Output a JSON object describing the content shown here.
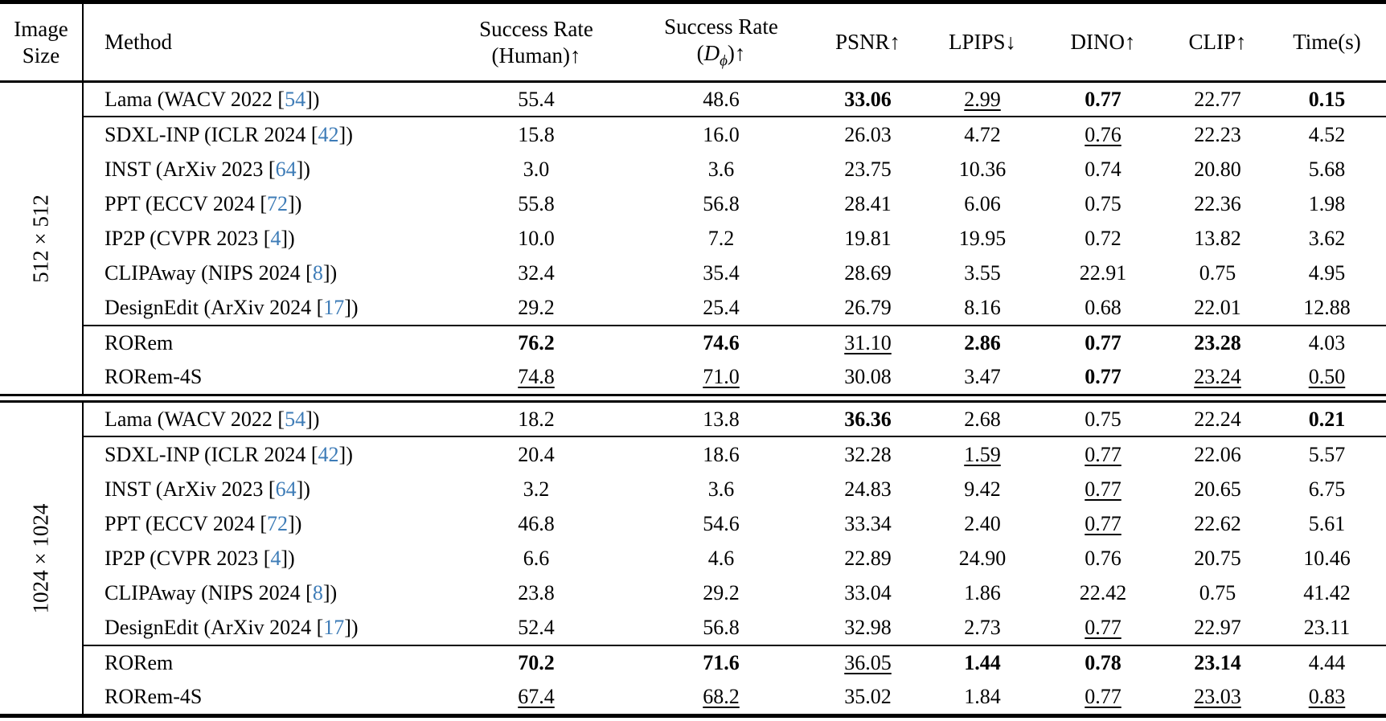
{
  "colors": {
    "citation_link": "#3e7cb7",
    "text": "#000000",
    "background": "#ffffff"
  },
  "table": {
    "headers": {
      "image_size_line1": "Image",
      "image_size_line2": "Size",
      "method": "Method",
      "sr_human_line1": "Success Rate",
      "sr_human_line2": "(Human)↑",
      "sr_d_line1": "Success Rate",
      "sr_d_open": "(",
      "sr_d_symbol": "D",
      "sr_d_sub": "ϕ",
      "sr_d_close": ")↑",
      "psnr": "PSNR↑",
      "lpips": "LPIPS↓",
      "dino": "DINO↑",
      "clip": "CLIP↑",
      "time": "Time(s)"
    },
    "groups": [
      {
        "size_label": "512 × 512",
        "rows": [
          {
            "rule_below": true,
            "method": {
              "prefix": "Lama (WACV 2022 [",
              "cite": "54",
              "suffix": "])"
            },
            "cells": [
              {
                "v": "55.4",
                "s": "p"
              },
              {
                "v": "48.6",
                "s": "p"
              },
              {
                "v": "33.06",
                "s": "b"
              },
              {
                "v": "2.99",
                "s": "u"
              },
              {
                "v": "0.77",
                "s": "b"
              },
              {
                "v": "22.77",
                "s": "p"
              },
              {
                "v": "0.15",
                "s": "b"
              }
            ]
          },
          {
            "method": {
              "prefix": "SDXL-INP (ICLR 2024 [",
              "cite": "42",
              "suffix": "])"
            },
            "cells": [
              {
                "v": "15.8",
                "s": "p"
              },
              {
                "v": "16.0",
                "s": "p"
              },
              {
                "v": "26.03",
                "s": "p"
              },
              {
                "v": "4.72",
                "s": "p"
              },
              {
                "v": "0.76",
                "s": "u"
              },
              {
                "v": "22.23",
                "s": "p"
              },
              {
                "v": "4.52",
                "s": "p"
              }
            ]
          },
          {
            "method": {
              "prefix": "INST (ArXiv 2023 [",
              "cite": "64",
              "suffix": "])"
            },
            "cells": [
              {
                "v": "3.0",
                "s": "p"
              },
              {
                "v": "3.6",
                "s": "p"
              },
              {
                "v": "23.75",
                "s": "p"
              },
              {
                "v": "10.36",
                "s": "p"
              },
              {
                "v": "0.74",
                "s": "p"
              },
              {
                "v": "20.80",
                "s": "p"
              },
              {
                "v": "5.68",
                "s": "p"
              }
            ]
          },
          {
            "method": {
              "prefix": "PPT (ECCV 2024 [",
              "cite": "72",
              "suffix": "])"
            },
            "cells": [
              {
                "v": "55.8",
                "s": "p"
              },
              {
                "v": "56.8",
                "s": "p"
              },
              {
                "v": "28.41",
                "s": "p"
              },
              {
                "v": "6.06",
                "s": "p"
              },
              {
                "v": "0.75",
                "s": "p"
              },
              {
                "v": "22.36",
                "s": "p"
              },
              {
                "v": "1.98",
                "s": "p"
              }
            ]
          },
          {
            "method": {
              "prefix": "IP2P (CVPR 2023 [",
              "cite": "4",
              "suffix": "])"
            },
            "cells": [
              {
                "v": "10.0",
                "s": "p"
              },
              {
                "v": "7.2",
                "s": "p"
              },
              {
                "v": "19.81",
                "s": "p"
              },
              {
                "v": "19.95",
                "s": "p"
              },
              {
                "v": "0.72",
                "s": "p"
              },
              {
                "v": "13.82",
                "s": "p"
              },
              {
                "v": "3.62",
                "s": "p"
              }
            ]
          },
          {
            "method": {
              "prefix": "CLIPAway (NIPS 2024 [",
              "cite": "8",
              "suffix": "])"
            },
            "cells": [
              {
                "v": "32.4",
                "s": "p"
              },
              {
                "v": "35.4",
                "s": "p"
              },
              {
                "v": "28.69",
                "s": "p"
              },
              {
                "v": "3.55",
                "s": "p"
              },
              {
                "v": "22.91",
                "s": "p"
              },
              {
                "v": "0.75",
                "s": "p"
              },
              {
                "v": "4.95",
                "s": "p"
              }
            ]
          },
          {
            "method": {
              "prefix": "DesignEdit (ArXiv 2024 [",
              "cite": "17",
              "suffix": "])"
            },
            "cells": [
              {
                "v": "29.2",
                "s": "p"
              },
              {
                "v": "25.4",
                "s": "p"
              },
              {
                "v": "26.79",
                "s": "p"
              },
              {
                "v": "8.16",
                "s": "p"
              },
              {
                "v": "0.68",
                "s": "p"
              },
              {
                "v": "22.01",
                "s": "p"
              },
              {
                "v": "12.88",
                "s": "p"
              }
            ]
          },
          {
            "rule_above": true,
            "method": {
              "prefix": "RORem",
              "cite": "",
              "suffix": ""
            },
            "cells": [
              {
                "v": "76.2",
                "s": "b"
              },
              {
                "v": "74.6",
                "s": "b"
              },
              {
                "v": "31.10",
                "s": "u"
              },
              {
                "v": "2.86",
                "s": "b"
              },
              {
                "v": "0.77",
                "s": "b"
              },
              {
                "v": "23.28",
                "s": "b"
              },
              {
                "v": "4.03",
                "s": "p"
              }
            ]
          },
          {
            "method": {
              "prefix": "RORem-4S",
              "cite": "",
              "suffix": ""
            },
            "cells": [
              {
                "v": "74.8",
                "s": "u"
              },
              {
                "v": "71.0",
                "s": "u"
              },
              {
                "v": "30.08",
                "s": "p"
              },
              {
                "v": "3.47",
                "s": "p"
              },
              {
                "v": "0.77",
                "s": "b"
              },
              {
                "v": "23.24",
                "s": "u"
              },
              {
                "v": "0.50",
                "s": "u"
              }
            ]
          }
        ]
      },
      {
        "size_label": "1024 × 1024",
        "rows": [
          {
            "rule_below": true,
            "method": {
              "prefix": "Lama (WACV 2022 [",
              "cite": "54",
              "suffix": "])"
            },
            "cells": [
              {
                "v": "18.2",
                "s": "p"
              },
              {
                "v": "13.8",
                "s": "p"
              },
              {
                "v": "36.36",
                "s": "b"
              },
              {
                "v": "2.68",
                "s": "p"
              },
              {
                "v": "0.75",
                "s": "p"
              },
              {
                "v": "22.24",
                "s": "p"
              },
              {
                "v": "0.21",
                "s": "b"
              }
            ]
          },
          {
            "method": {
              "prefix": "SDXL-INP (ICLR 2024 [",
              "cite": "42",
              "suffix": "])"
            },
            "cells": [
              {
                "v": "20.4",
                "s": "p"
              },
              {
                "v": "18.6",
                "s": "p"
              },
              {
                "v": "32.28",
                "s": "p"
              },
              {
                "v": "1.59",
                "s": "u"
              },
              {
                "v": "0.77",
                "s": "u"
              },
              {
                "v": "22.06",
                "s": "p"
              },
              {
                "v": "5.57",
                "s": "p"
              }
            ]
          },
          {
            "method": {
              "prefix": "INST (ArXiv 2023 [",
              "cite": "64",
              "suffix": "])"
            },
            "cells": [
              {
                "v": "3.2",
                "s": "p"
              },
              {
                "v": "3.6",
                "s": "p"
              },
              {
                "v": "24.83",
                "s": "p"
              },
              {
                "v": "9.42",
                "s": "p"
              },
              {
                "v": "0.77",
                "s": "u"
              },
              {
                "v": "20.65",
                "s": "p"
              },
              {
                "v": "6.75",
                "s": "p"
              }
            ]
          },
          {
            "method": {
              "prefix": "PPT (ECCV 2024 [",
              "cite": "72",
              "suffix": "])"
            },
            "cells": [
              {
                "v": "46.8",
                "s": "p"
              },
              {
                "v": "54.6",
                "s": "p"
              },
              {
                "v": "33.34",
                "s": "p"
              },
              {
                "v": "2.40",
                "s": "p"
              },
              {
                "v": "0.77",
                "s": "u"
              },
              {
                "v": "22.62",
                "s": "p"
              },
              {
                "v": "5.61",
                "s": "p"
              }
            ]
          },
          {
            "method": {
              "prefix": "IP2P (CVPR 2023 [",
              "cite": "4",
              "suffix": "])"
            },
            "cells": [
              {
                "v": "6.6",
                "s": "p"
              },
              {
                "v": "4.6",
                "s": "p"
              },
              {
                "v": "22.89",
                "s": "p"
              },
              {
                "v": "24.90",
                "s": "p"
              },
              {
                "v": "0.76",
                "s": "p"
              },
              {
                "v": "20.75",
                "s": "p"
              },
              {
                "v": "10.46",
                "s": "p"
              }
            ]
          },
          {
            "method": {
              "prefix": "CLIPAway (NIPS 2024 [",
              "cite": "8",
              "suffix": "])"
            },
            "cells": [
              {
                "v": "23.8",
                "s": "p"
              },
              {
                "v": "29.2",
                "s": "p"
              },
              {
                "v": "33.04",
                "s": "p"
              },
              {
                "v": "1.86",
                "s": "p"
              },
              {
                "v": "22.42",
                "s": "p"
              },
              {
                "v": "0.75",
                "s": "p"
              },
              {
                "v": "41.42",
                "s": "p"
              }
            ]
          },
          {
            "method": {
              "prefix": "DesignEdit (ArXiv 2024 [",
              "cite": "17",
              "suffix": "])"
            },
            "cells": [
              {
                "v": "52.4",
                "s": "p"
              },
              {
                "v": "56.8",
                "s": "p"
              },
              {
                "v": "32.98",
                "s": "p"
              },
              {
                "v": "2.73",
                "s": "p"
              },
              {
                "v": "0.77",
                "s": "u"
              },
              {
                "v": "22.97",
                "s": "p"
              },
              {
                "v": "23.11",
                "s": "p"
              }
            ]
          },
          {
            "rule_above": true,
            "method": {
              "prefix": "RORem",
              "cite": "",
              "suffix": ""
            },
            "cells": [
              {
                "v": "70.2",
                "s": "b"
              },
              {
                "v": "71.6",
                "s": "b"
              },
              {
                "v": "36.05",
                "s": "u"
              },
              {
                "v": "1.44",
                "s": "b"
              },
              {
                "v": "0.78",
                "s": "b"
              },
              {
                "v": "23.14",
                "s": "b"
              },
              {
                "v": "4.44",
                "s": "p"
              }
            ]
          },
          {
            "method": {
              "prefix": "RORem-4S",
              "cite": "",
              "suffix": ""
            },
            "cells": [
              {
                "v": "67.4",
                "s": "u"
              },
              {
                "v": "68.2",
                "s": "u"
              },
              {
                "v": "35.02",
                "s": "p"
              },
              {
                "v": "1.84",
                "s": "p"
              },
              {
                "v": "0.77",
                "s": "u"
              },
              {
                "v": "23.03",
                "s": "u"
              },
              {
                "v": "0.83",
                "s": "u"
              }
            ]
          }
        ]
      }
    ]
  }
}
